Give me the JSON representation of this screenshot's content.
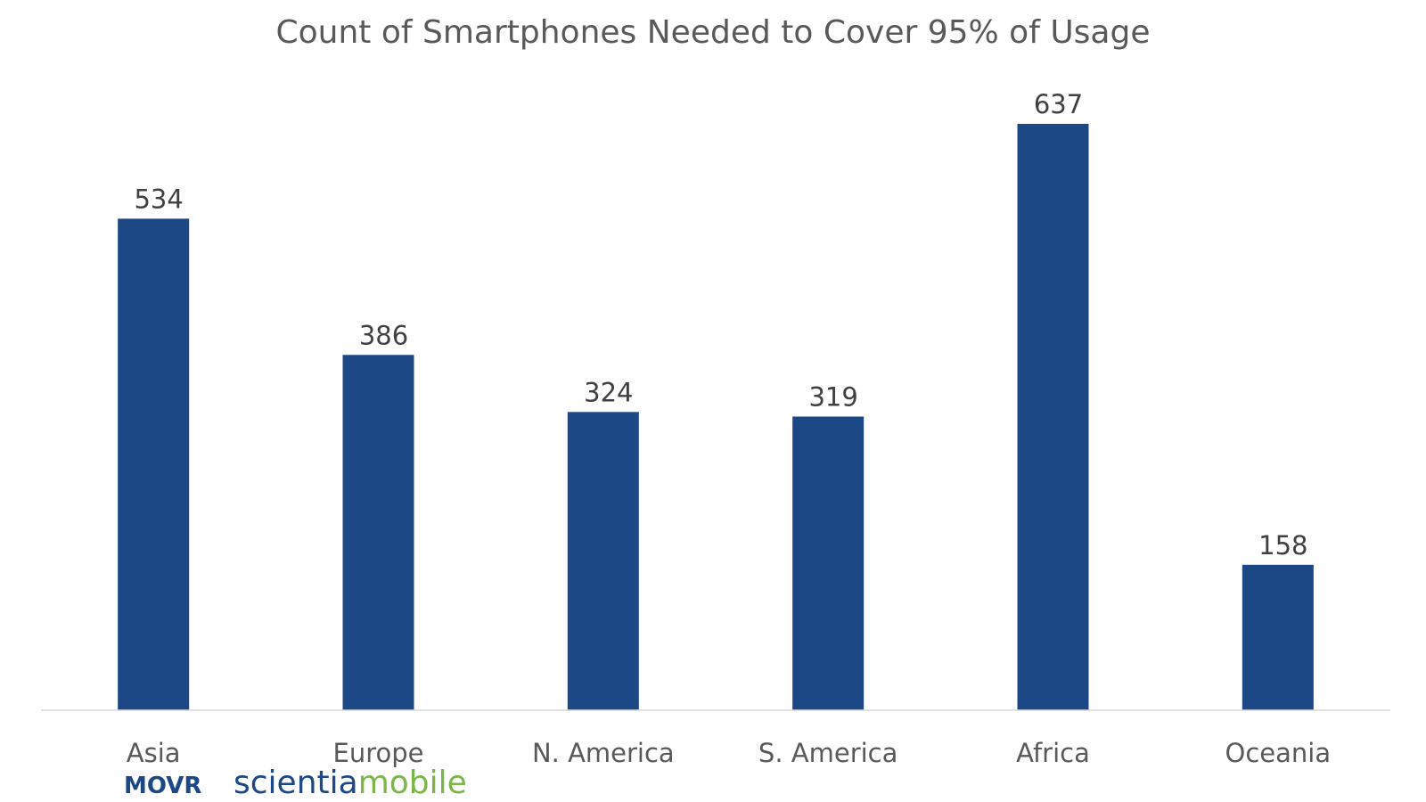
{
  "chart_data": {
    "type": "bar",
    "title": "Count of Smartphones Needed to Cover 95% of Usage",
    "categories": [
      "Asia",
      "Europe",
      "N. America",
      "S. America",
      "Africa",
      "Oceania"
    ],
    "values": [
      534,
      386,
      324,
      319,
      637,
      158
    ],
    "xlabel": "",
    "ylabel": "",
    "ylim": [
      0,
      637
    ],
    "grid": false,
    "legend": "none",
    "data_labels": true
  },
  "logo": {
    "movr": "MOVR",
    "scientia_part1": "scientia",
    "scientia_part2": "mobile"
  },
  "colors": {
    "bar": "#1c4886",
    "axis": "#d9d9d9",
    "movr": "#1c4886",
    "scientia": "#1c4886",
    "mobile": "#7ab648"
  }
}
